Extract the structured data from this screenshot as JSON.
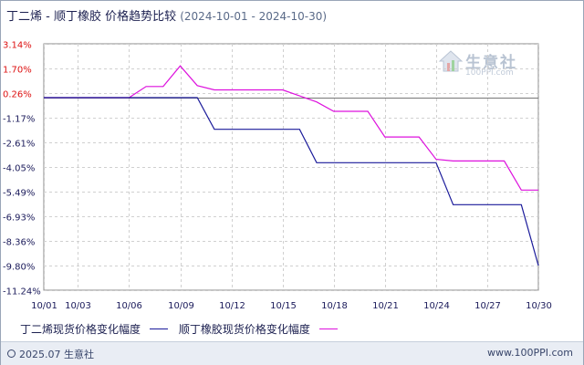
{
  "title": {
    "main": "丁二烯 - 顺丁橡胶 价格趋势比较",
    "range": "(2024-10-01 - 2024-10-30)"
  },
  "watermark": {
    "cn": "生意社",
    "en": "100PPI.com"
  },
  "footer": {
    "copyright": "2025.07 生意社",
    "site": "www.100PPI.com"
  },
  "colors": {
    "series1": "#1a1a9a",
    "series2": "#dd11dd",
    "zero_line": "#777777",
    "grid": "#d0d0d0",
    "axis_text_negative": "#1a1a5a",
    "axis_text_positive": "#dd1111"
  },
  "chart_data": {
    "type": "line",
    "title": "丁二烯 - 顺丁橡胶 价格趋势比较",
    "xlabel": "",
    "ylabel": "",
    "xlim": [
      1,
      30
    ],
    "ylim": [
      -11.24,
      3.14
    ],
    "y_ticks": [
      3.14,
      1.7,
      0.26,
      -1.17,
      -2.61,
      -4.05,
      -5.49,
      -6.93,
      -8.36,
      -9.8,
      -11.24
    ],
    "y_tick_labels": [
      "3.14%",
      "1.70%",
      "0.26%",
      "-1.17%",
      "-2.61%",
      "-4.05%",
      "-5.49%",
      "-6.93%",
      "-8.36%",
      "-9.80%",
      "-11.24%"
    ],
    "x_ticks": [
      1,
      3,
      6,
      9,
      12,
      15,
      18,
      21,
      24,
      27,
      30
    ],
    "x_tick_labels": [
      "10/01",
      "10/03",
      "10/06",
      "10/09",
      "10/12",
      "10/15",
      "10/18",
      "10/21",
      "10/24",
      "10/27",
      "10/30"
    ],
    "legend_position": "bottom-left",
    "grid": true,
    "series": [
      {
        "name": "丁二烯现货价格变化幅度",
        "x": [
          1,
          6,
          9,
          10,
          11,
          15,
          16,
          17,
          24,
          25,
          29,
          30
        ],
        "y": [
          0,
          0,
          0,
          0,
          -1.85,
          -1.85,
          -1.85,
          -3.8,
          -3.8,
          -6.25,
          -6.25,
          -9.8
        ]
      },
      {
        "name": "顺丁橡胶现货价格变化幅度",
        "x": [
          1,
          6,
          7,
          8,
          9,
          10,
          11,
          15,
          16,
          17,
          18,
          19,
          20,
          21,
          22,
          23,
          24,
          25,
          28,
          29,
          30
        ],
        "y": [
          0,
          0,
          0.65,
          0.65,
          1.85,
          0.7,
          0.45,
          0.45,
          0.1,
          -0.25,
          -0.8,
          -0.8,
          -0.8,
          -2.3,
          -2.3,
          -2.3,
          -3.6,
          -3.7,
          -3.7,
          -5.4,
          -5.4
        ]
      }
    ]
  }
}
